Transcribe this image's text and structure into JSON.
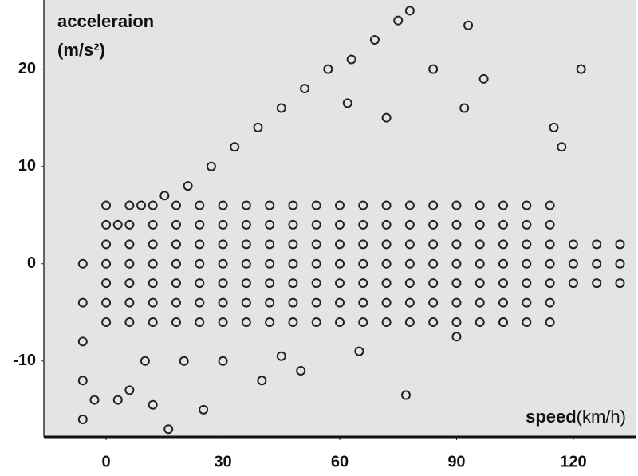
{
  "chart_data": {
    "type": "scatter",
    "y_label": "acceleraion",
    "y_unit": "(m/s²)",
    "x_label": "speed",
    "x_unit": "(km/h)",
    "xlim": [
      -16,
      136
    ],
    "ylim": [
      -17.8,
      27.1
    ],
    "xticks": [
      0,
      30,
      60,
      90,
      120
    ],
    "yticks": [
      -10,
      0,
      10,
      20
    ],
    "grid": false,
    "color": "#222222",
    "x": [
      0,
      0,
      0,
      0,
      0,
      0,
      0,
      6,
      6,
      6,
      6,
      6,
      6,
      6,
      12,
      12,
      12,
      12,
      12,
      12,
      12,
      18,
      18,
      18,
      18,
      18,
      18,
      18,
      24,
      24,
      24,
      24,
      24,
      24,
      24,
      30,
      30,
      30,
      30,
      30,
      30,
      30,
      36,
      36,
      36,
      36,
      36,
      36,
      36,
      42,
      42,
      42,
      42,
      42,
      42,
      42,
      48,
      48,
      48,
      48,
      48,
      48,
      48,
      54,
      54,
      54,
      54,
      54,
      54,
      54,
      60,
      60,
      60,
      60,
      60,
      60,
      60,
      66,
      66,
      66,
      66,
      66,
      66,
      66,
      72,
      72,
      72,
      72,
      72,
      72,
      72,
      78,
      78,
      78,
      78,
      78,
      78,
      78,
      84,
      84,
      84,
      84,
      84,
      84,
      84,
      90,
      90,
      90,
      90,
      90,
      90,
      90,
      96,
      96,
      96,
      96,
      96,
      96,
      96,
      102,
      102,
      102,
      102,
      102,
      102,
      102,
      108,
      108,
      108,
      108,
      108,
      108,
      108,
      114,
      114,
      114,
      114,
      114,
      114,
      114,
      120,
      120,
      120,
      126,
      126,
      126,
      132,
      132,
      132,
      -6,
      -6,
      -6,
      -6,
      -6,
      3,
      9,
      15,
      21,
      27,
      33,
      39,
      45,
      51,
      57,
      63,
      69,
      75,
      78,
      93,
      84,
      122,
      97,
      72,
      62,
      92,
      115,
      117,
      -3,
      3,
      6,
      16,
      12,
      25,
      77,
      40,
      20,
      30,
      50,
      65,
      90,
      102,
      10,
      45
    ],
    "values": [
      -6,
      -4,
      -2,
      0,
      2,
      4,
      6,
      -6,
      -4,
      -2,
      0,
      2,
      4,
      6,
      -6,
      -4,
      -2,
      0,
      2,
      4,
      6,
      -6,
      -4,
      -2,
      0,
      2,
      4,
      6,
      -6,
      -4,
      -2,
      0,
      2,
      4,
      6,
      -6,
      -4,
      -2,
      0,
      2,
      4,
      6,
      -6,
      -4,
      -2,
      0,
      2,
      4,
      6,
      -6,
      -4,
      -2,
      0,
      2,
      4,
      6,
      -6,
      -4,
      -2,
      0,
      2,
      4,
      6,
      -6,
      -4,
      -2,
      0,
      2,
      4,
      6,
      -6,
      -4,
      -2,
      0,
      2,
      4,
      6,
      -6,
      -4,
      -2,
      0,
      2,
      4,
      6,
      -6,
      -4,
      -2,
      0,
      2,
      4,
      6,
      -6,
      -4,
      -2,
      0,
      2,
      4,
      6,
      -6,
      -4,
      -2,
      0,
      2,
      4,
      6,
      -6,
      -4,
      -2,
      0,
      2,
      4,
      6,
      -6,
      -4,
      -2,
      0,
      2,
      4,
      6,
      -6,
      -4,
      -2,
      0,
      2,
      4,
      6,
      -6,
      -4,
      -2,
      0,
      2,
      4,
      6,
      -6,
      -4,
      -2,
      0,
      2,
      4,
      6,
      -2,
      0,
      2,
      -2,
      0,
      2,
      -2,
      0,
      2,
      -16,
      -12,
      -8,
      -4,
      0,
      4,
      6,
      7,
      8,
      10,
      12,
      14,
      16,
      18,
      20,
      21,
      23,
      25,
      26,
      24.5,
      20,
      20,
      19,
      15,
      16.5,
      16,
      14,
      12,
      -14,
      -14,
      -13,
      -17,
      -14.5,
      -15,
      -13.5,
      -12,
      -10,
      -10,
      -11,
      -9,
      -7.5,
      -6,
      -10,
      -9.5
    ]
  }
}
